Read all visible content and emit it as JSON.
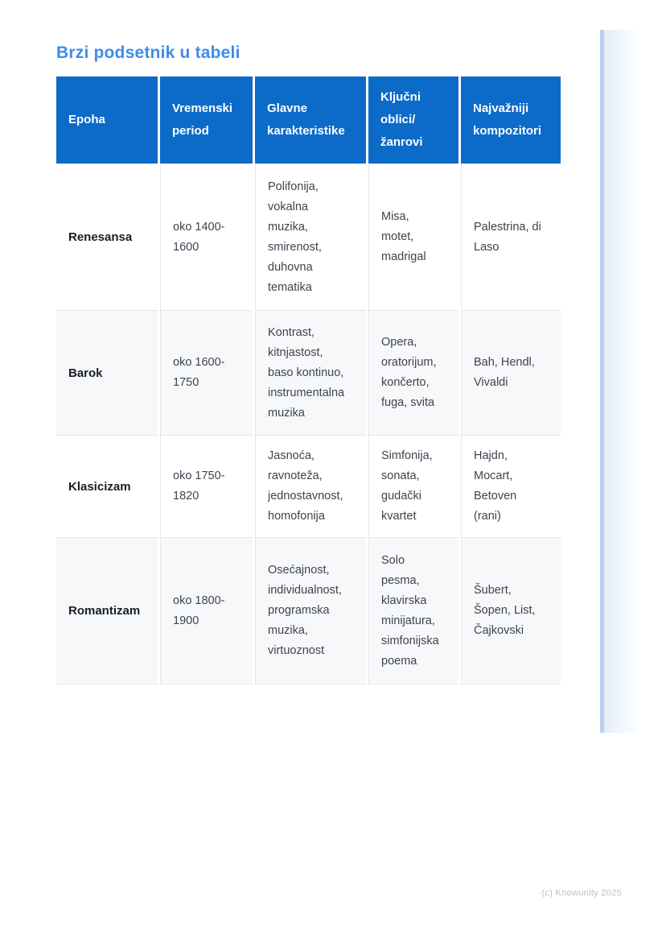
{
  "page": {
    "title": "Brzi podsetnik u tabeli",
    "footer": "(c) Knowunity 2025"
  },
  "colors": {
    "title_blue": "#3e8de9",
    "header_bg": "#0c6bc9",
    "header_text": "#ffffff",
    "body_text": "#3d434e",
    "epoch_text": "#191e27",
    "alt_row_bg": "#f7f8fa",
    "border": "#e4e6eb",
    "edge_bar_fill": "#edf4fb",
    "edge_bar_edge": "#b7d0ec",
    "footer_text": "#b8bec9"
  },
  "table": {
    "columns": [
      "Epoha",
      "Vremenski\nperiod",
      "Glavne\nkarakteristike",
      "Ključni\noblici/\nžanrovi",
      "Najvažniji\nkompozitori"
    ],
    "rows": [
      [
        "Renesansa",
        "oko 1400-\n1600",
        "Polifonija,\nvokalna\nmuzika,\nsmirenost,\nduhovna\ntematika",
        "Misa,\nmotet,\nmadrigal",
        "Palestrina, di\nLaso"
      ],
      [
        "Barok",
        "oko 1600-\n1750",
        "Kontrast,\nkitnjastost,\nbaso kontinuo,\ninstrumentalna\nmuzika",
        "Opera,\noratorijum,\nkončerto,\nfuga, svita",
        "Bah, Hendl,\nVivaldi"
      ],
      [
        "Klasicizam",
        "oko 1750-\n1820",
        "Jasnoća,\nravnoteža,\njednostavnost,\nhomofonija",
        "Simfonija,\nsonata,\ngudački\nkvartet",
        "Hajdn,\nMocart,\nBetoven\n(rani)"
      ],
      [
        "Romantizam",
        "oko 1800-\n1900",
        "Osećajnost,\nindividualnost,\nprogramska\nmuzika,\nvirtuoznost",
        "Solo\npesma,\nklavirska\nminijatura,\nsimfonijska\npoema",
        "Šubert,\nŠopen, List,\nČajkovski"
      ]
    ]
  }
}
